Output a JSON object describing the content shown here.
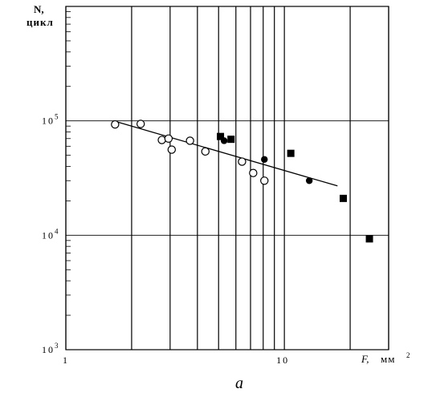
{
  "figure": {
    "panel_label": "a"
  },
  "chart_data": {
    "type": "scatter",
    "title": "",
    "ylabel_line1": "N,",
    "ylabel_line2": "цикл",
    "xlabel_var": "F,",
    "xlabel_unit": "мм",
    "xlabel_exp": "2",
    "xscale": "log",
    "yscale": "log",
    "xlim": [
      1,
      30
    ],
    "ylim": [
      1000,
      1000000
    ],
    "x_ticks": [
      {
        "value": 1,
        "label": "1"
      },
      {
        "value": 10,
        "label": "10"
      }
    ],
    "y_ticks": [
      {
        "value": 1000,
        "base": "10",
        "exp": "3"
      },
      {
        "value": 10000,
        "base": "10",
        "exp": "4"
      },
      {
        "value": 100000,
        "base": "10",
        "exp": "5"
      }
    ],
    "x_gridlines": [
      1,
      2,
      3,
      4,
      5,
      6,
      7,
      8,
      9,
      10,
      20,
      30
    ],
    "y_gridlines": [
      1000,
      10000,
      100000,
      1000000
    ],
    "grid": true,
    "series": [
      {
        "marker": "open-circle",
        "points": [
          {
            "x": 1.68,
            "y": 93000
          },
          {
            "x": 2.2,
            "y": 94000
          },
          {
            "x": 2.75,
            "y": 68000
          },
          {
            "x": 2.95,
            "y": 70000
          },
          {
            "x": 3.05,
            "y": 56000
          },
          {
            "x": 3.7,
            "y": 67000
          },
          {
            "x": 4.35,
            "y": 54000
          },
          {
            "x": 6.4,
            "y": 44000
          },
          {
            "x": 7.2,
            "y": 35000
          },
          {
            "x": 8.1,
            "y": 30000
          }
        ]
      },
      {
        "marker": "filled-circle",
        "points": [
          {
            "x": 5.3,
            "y": 67000
          },
          {
            "x": 8.1,
            "y": 46000
          },
          {
            "x": 13.0,
            "y": 30000
          }
        ]
      },
      {
        "marker": "filled-square",
        "points": [
          {
            "x": 5.1,
            "y": 73000
          },
          {
            "x": 5.7,
            "y": 69000
          },
          {
            "x": 10.7,
            "y": 52000
          },
          {
            "x": 18.6,
            "y": 21000
          },
          {
            "x": 24.5,
            "y": 9300
          }
        ]
      }
    ],
    "trendline": {
      "x": [
        1.65,
        17.5
      ],
      "y": [
        100000,
        27000
      ]
    }
  }
}
